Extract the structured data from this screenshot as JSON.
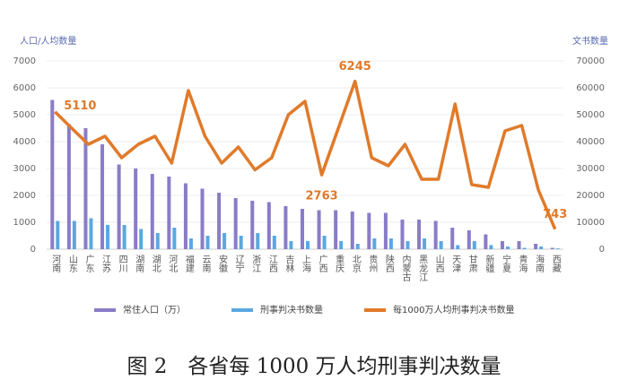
{
  "chart_data": {
    "type": "bar",
    "title": "图 2　各省每 1000 万人均刑事判决数量",
    "y_label": "人口/人均数量",
    "y2_label": "文书数量",
    "categories": [
      "河南",
      "山东",
      "广东",
      "江苏",
      "四川",
      "湖南",
      "湖北",
      "河北",
      "福建",
      "云南",
      "安徽",
      "辽宁",
      "浙江",
      "江西",
      "吉林",
      "上海",
      "广西",
      "重庆",
      "北京",
      "贵州",
      "陕西",
      "内蒙古",
      "黑龙江",
      "山西",
      "天津",
      "甘肃",
      "新疆",
      "宁夏",
      "青海",
      "海南",
      "西藏"
    ],
    "series": [
      {
        "name": "常住人口（万）",
        "type": "bar",
        "color": "#8a7cc8",
        "axis": "y",
        "values": [
          5550,
          4650,
          4500,
          3900,
          3150,
          3000,
          2800,
          2700,
          2450,
          2250,
          2100,
          1900,
          1800,
          1750,
          1600,
          1500,
          1450,
          1450,
          1400,
          1350,
          1350,
          1100,
          1100,
          1050,
          800,
          700,
          550,
          300,
          300,
          200,
          50
        ]
      },
      {
        "name": "刑事判决书数量",
        "type": "bar",
        "color": "#5ba8e0",
        "axis": "y2",
        "values": [
          10500,
          10500,
          11500,
          9000,
          9000,
          7500,
          6000,
          8000,
          4000,
          5000,
          6000,
          5000,
          6000,
          5000,
          3000,
          3000,
          5000,
          3000,
          2000,
          4000,
          4000,
          3000,
          4000,
          3000,
          1500,
          3000,
          1500,
          1000,
          500,
          1000,
          300
        ]
      },
      {
        "name": "每1000万人均刑事判决书数量",
        "type": "line",
        "color": "#e07a2a",
        "axis": "y",
        "values": [
          5110,
          4500,
          3900,
          4200,
          3400,
          3900,
          4200,
          3200,
          5900,
          4200,
          3200,
          3800,
          2950,
          3400,
          5000,
          5500,
          2763,
          4500,
          6245,
          3400,
          3100,
          3900,
          2600,
          2600,
          5400,
          2400,
          2300,
          4400,
          4600,
          2200,
          743
        ],
        "value_labels": [
          "5110",
          null,
          null,
          null,
          null,
          null,
          null,
          null,
          null,
          null,
          null,
          null,
          null,
          null,
          null,
          null,
          "2763",
          null,
          "6245",
          null,
          null,
          null,
          null,
          null,
          null,
          null,
          null,
          null,
          null,
          null,
          "743"
        ]
      }
    ],
    "ylim": [
      0,
      7000
    ],
    "yticks": [
      0,
      1000,
      2000,
      3000,
      4000,
      5000,
      6000,
      7000
    ],
    "y2lim": [
      0,
      70000
    ],
    "y2ticks": [
      0,
      10000,
      20000,
      30000,
      40000,
      50000,
      60000,
      70000
    ],
    "grid": true
  }
}
